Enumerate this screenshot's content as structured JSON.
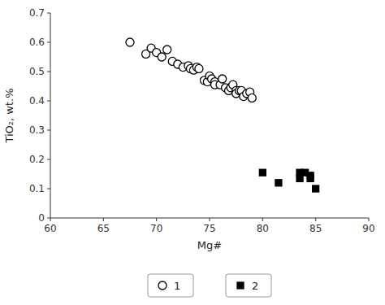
{
  "chart_data": {
    "type": "scatter",
    "x_label": "Mg#",
    "y_label": "TiO₂, wt.%",
    "xlim": [
      60,
      90
    ],
    "ylim": [
      0,
      0.7
    ],
    "xticks": [
      60,
      65,
      70,
      75,
      80,
      85,
      90
    ],
    "yticks": [
      0,
      0.1,
      0.2,
      0.3,
      0.4,
      0.5,
      0.6,
      0.7
    ],
    "grid": false,
    "legend": "bottom",
    "series": [
      {
        "name": "1",
        "color": "#000000",
        "marker": "circle-open",
        "x": [
          67.5,
          69.0,
          69.5,
          70.0,
          70.5,
          71.0,
          71.5,
          72.0,
          72.5,
          73.0,
          73.2,
          73.5,
          73.8,
          74.0,
          74.5,
          74.8,
          75.0,
          75.2,
          75.5,
          75.5,
          76.0,
          76.2,
          76.5,
          76.8,
          77.0,
          77.2,
          77.5,
          77.5,
          77.8,
          78.0,
          78.2,
          78.5,
          78.8,
          79.0
        ],
        "values": [
          0.6,
          0.56,
          0.58,
          0.565,
          0.55,
          0.575,
          0.535,
          0.525,
          0.515,
          0.52,
          0.51,
          0.505,
          0.515,
          0.51,
          0.47,
          0.465,
          0.485,
          0.475,
          0.465,
          0.455,
          0.455,
          0.475,
          0.445,
          0.435,
          0.445,
          0.455,
          0.435,
          0.425,
          0.435,
          0.435,
          0.415,
          0.425,
          0.43,
          0.41
        ]
      },
      {
        "name": "2",
        "color": "#000000",
        "marker": "square",
        "x": [
          80.0,
          81.5,
          83.5,
          83.5,
          84.0,
          84.5,
          84.5,
          85.0
        ],
        "values": [
          0.155,
          0.12,
          0.135,
          0.155,
          0.155,
          0.145,
          0.135,
          0.1
        ]
      }
    ]
  }
}
